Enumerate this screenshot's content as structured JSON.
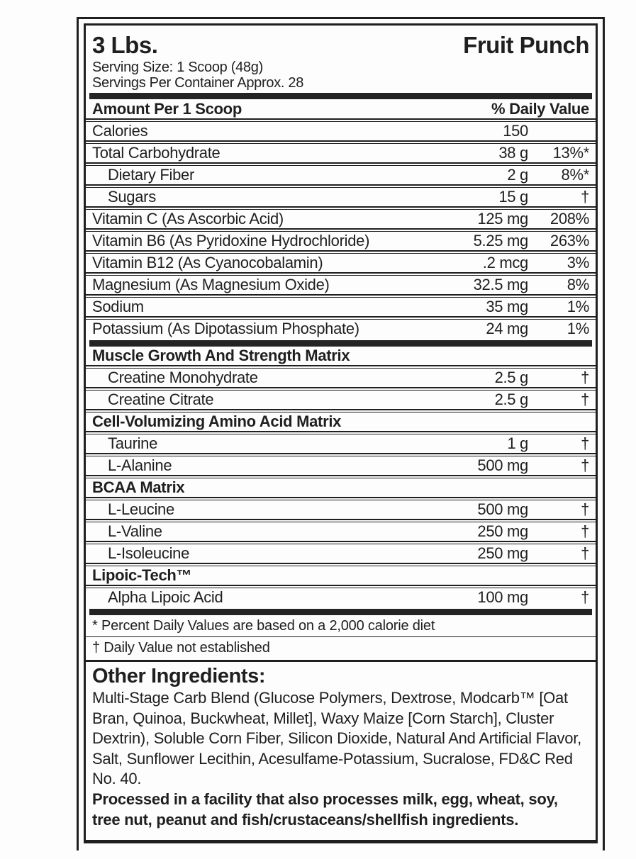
{
  "product": {
    "size": "3 Lbs.",
    "flavor": "Fruit Punch"
  },
  "serving": {
    "size": "Serving Size: 1 Scoop (48g)",
    "per_container": "Servings Per Container Approx. 28"
  },
  "table": {
    "header": {
      "amount_col": "Amount Per 1 Scoop",
      "dv_col": "% Daily Value"
    },
    "nutrients": [
      {
        "name": "Calories",
        "amount": "150",
        "dv": "",
        "indent": false
      },
      {
        "name": "Total Carbohydrate",
        "amount": "38 g",
        "dv": "13%*",
        "indent": false
      },
      {
        "name": "Dietary Fiber",
        "amount": "2 g",
        "dv": "8%*",
        "indent": true
      },
      {
        "name": "Sugars",
        "amount": "15 g",
        "dv": "†",
        "indent": true
      },
      {
        "name": "Vitamin C (As Ascorbic Acid)",
        "amount": "125 mg",
        "dv": "208%",
        "indent": false
      },
      {
        "name": "Vitamin B6 (As Pyridoxine Hydrochloride)",
        "amount": "5.25 mg",
        "dv": "263%",
        "indent": false
      },
      {
        "name": "Vitamin B12 (As Cyanocobalamin)",
        "amount": ".2 mcg",
        "dv": "3%",
        "indent": false
      },
      {
        "name": "Magnesium (As Magnesium Oxide)",
        "amount": "32.5 mg",
        "dv": "8%",
        "indent": false
      },
      {
        "name": "Sodium",
        "amount": "35 mg",
        "dv": "1%",
        "indent": false
      },
      {
        "name": "Potassium (As Dipotassium Phosphate)",
        "amount": "24 mg",
        "dv": "1%",
        "indent": false
      }
    ],
    "sections": [
      {
        "title": "Muscle Growth And Strength Matrix",
        "items": [
          {
            "name": "Creatine Monohydrate",
            "amount": "2.5 g",
            "dv": "†"
          },
          {
            "name": "Creatine Citrate",
            "amount": "2.5 g",
            "dv": "†"
          }
        ]
      },
      {
        "title": "Cell-Volumizing Amino Acid Matrix",
        "items": [
          {
            "name": "Taurine",
            "amount": "1 g",
            "dv": "†"
          },
          {
            "name": "L-Alanine",
            "amount": "500 mg",
            "dv": "†"
          }
        ]
      },
      {
        "title": "BCAA Matrix",
        "items": [
          {
            "name": "L-Leucine",
            "amount": "500 mg",
            "dv": "†"
          },
          {
            "name": "L-Valine",
            "amount": "250 mg",
            "dv": "†"
          },
          {
            "name": "L-Isoleucine",
            "amount": "250 mg",
            "dv": "†"
          }
        ]
      },
      {
        "title": "Lipoic-Tech™",
        "items": [
          {
            "name": "Alpha Lipoic Acid",
            "amount": "100 mg",
            "dv": "†"
          }
        ]
      }
    ]
  },
  "footnotes": [
    "* Percent Daily Values are based on a 2,000 calorie diet",
    "† Daily Value not established"
  ],
  "other_ingredients": {
    "heading": "Other Ingredients:",
    "text": "Multi-Stage Carb Blend (Glucose Polymers, Dextrose, Modcarb™ [Oat Bran, Quinoa, Buckwheat, Millet], Waxy Maize [Corn Starch], Cluster Dextrin), Soluble Corn Fiber, Silicon Dioxide, Natural And Artificial Flavor, Salt, Sunflower Lecithin, Acesulfame-Potassium, Sucralose, FD&C Red No. 40.",
    "allergen": "Processed in a facility that also processes milk, egg, wheat, soy, tree nut, peanut and fish/crustaceans/shellfish ingredients."
  },
  "colors": {
    "ink": "#1f1f1f",
    "background": "#fdfdfd"
  }
}
